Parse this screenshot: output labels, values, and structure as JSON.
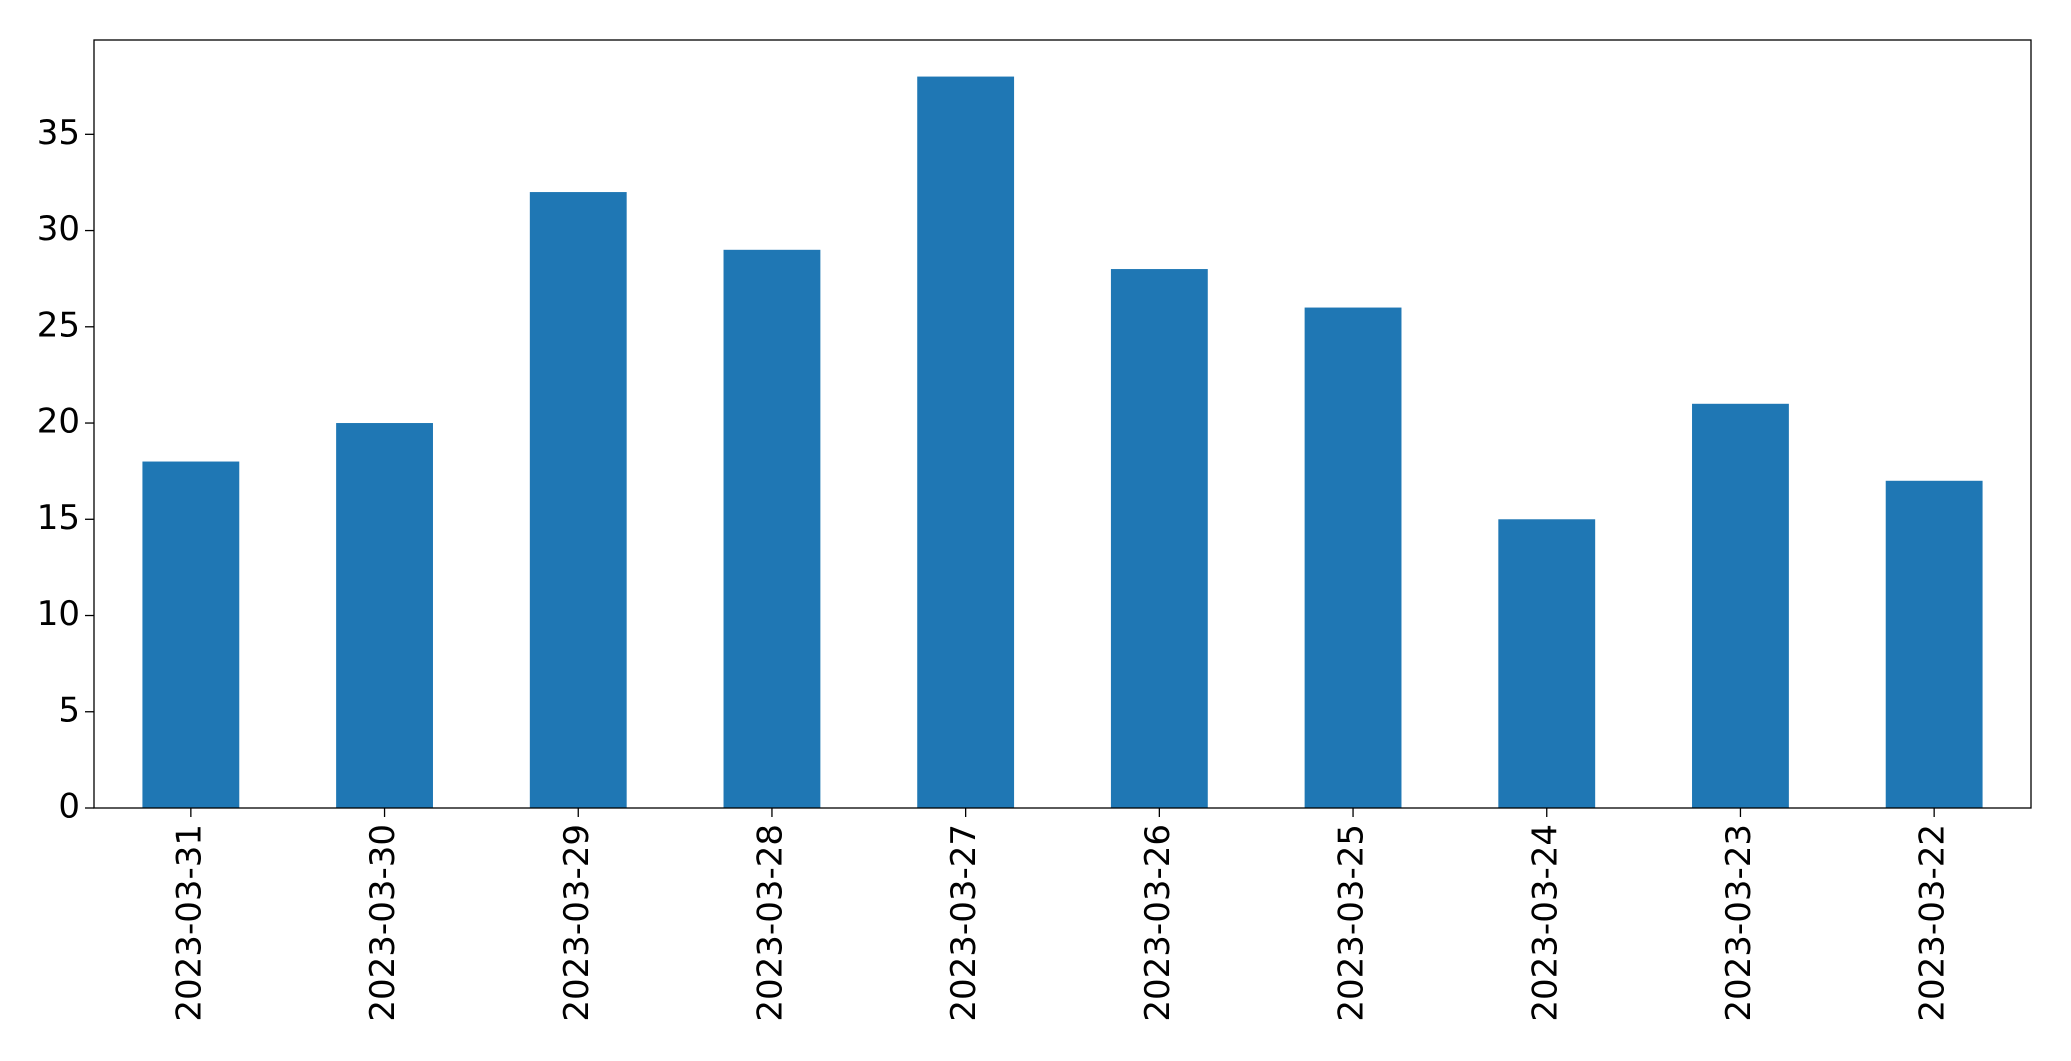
{
  "chart_data": {
    "type": "bar",
    "categories": [
      "2023-03-31",
      "2023-03-30",
      "2023-03-29",
      "2023-03-28",
      "2023-03-27",
      "2023-03-26",
      "2023-03-25",
      "2023-03-24",
      "2023-03-23",
      "2023-03-22"
    ],
    "values": [
      18,
      20,
      32,
      29,
      38,
      28,
      26,
      15,
      21,
      17
    ],
    "color": "#1f77b4",
    "ylim": [
      0,
      39.9
    ],
    "yticks": [
      0,
      5,
      10,
      15,
      20,
      25,
      30,
      35
    ],
    "grid": false
  }
}
